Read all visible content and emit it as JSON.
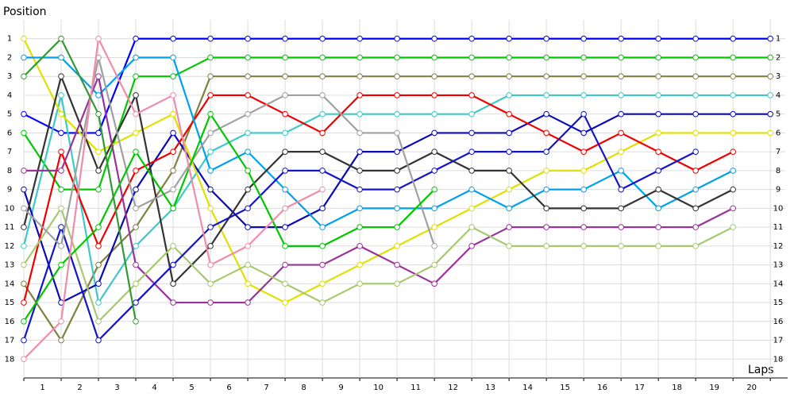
{
  "chart_data": {
    "type": "line",
    "y_label": "Position",
    "x_label": "Laps",
    "x": [
      0,
      1,
      2,
      3,
      4,
      5,
      6,
      7,
      8,
      9,
      10,
      11,
      12,
      13,
      14,
      15,
      16,
      17,
      18,
      19,
      20
    ],
    "xlim": [
      0,
      20.4
    ],
    "ylim": [
      0,
      19
    ],
    "y_inverted": true,
    "grid": true,
    "marker_fill": "#ffffff",
    "xticks": [
      {
        "value": 0.5,
        "label": "1"
      },
      {
        "value": 1.5,
        "label": "2"
      },
      {
        "value": 2.5,
        "label": "3"
      },
      {
        "value": 3.5,
        "label": "4"
      },
      {
        "value": 4.5,
        "label": "5"
      },
      {
        "value": 5.5,
        "label": "6"
      },
      {
        "value": 6.5,
        "label": "7"
      },
      {
        "value": 7.5,
        "label": "8"
      },
      {
        "value": 8.5,
        "label": "9"
      },
      {
        "value": 9.5,
        "label": "10"
      },
      {
        "value": 10.5,
        "label": "11"
      },
      {
        "value": 11.5,
        "label": "12"
      },
      {
        "value": 12.5,
        "label": "13"
      },
      {
        "value": 13.5,
        "label": "14"
      },
      {
        "value": 14.5,
        "label": "15"
      },
      {
        "value": 15.5,
        "label": "16"
      },
      {
        "value": 16.5,
        "label": "17"
      },
      {
        "value": 17.5,
        "label": "18"
      },
      {
        "value": 18.5,
        "label": "19"
      },
      {
        "value": 19.5,
        "label": "20"
      }
    ],
    "yticks": [
      1,
      2,
      3,
      4,
      5,
      6,
      7,
      8,
      9,
      10,
      11,
      12,
      13,
      14,
      15,
      16,
      17,
      18
    ],
    "series": [
      {
        "color": "#0000ff",
        "values": [
          5,
          6,
          6,
          1,
          1,
          1,
          1,
          1,
          1,
          1,
          1,
          1,
          1,
          1,
          1,
          1,
          1,
          1,
          1,
          1,
          1
        ]
      },
      {
        "color": "#00c800",
        "values": [
          6,
          9,
          9,
          3,
          3,
          2,
          2,
          2,
          2,
          2,
          2,
          2,
          2,
          2,
          2,
          2,
          2,
          2,
          2,
          2,
          2
        ]
      },
      {
        "color": "#808040",
        "values": [
          14,
          17,
          13,
          11,
          8,
          3,
          3,
          3,
          3,
          3,
          3,
          3,
          3,
          3,
          3,
          3,
          3,
          3,
          3,
          3,
          3
        ]
      },
      {
        "color": "#40c8c8",
        "values": [
          12,
          4,
          15,
          12,
          10,
          7,
          6,
          6,
          5,
          5,
          5,
          5,
          5,
          4,
          4,
          4,
          4,
          4,
          4,
          4,
          4
        ]
      },
      {
        "color": "#0a0ab4",
        "values": [
          9,
          15,
          14,
          9,
          6,
          9,
          11,
          11,
          10,
          7,
          7,
          6,
          6,
          6,
          5,
          6,
          5,
          5,
          5,
          5,
          5
        ]
      },
      {
        "color": "#e0e000",
        "values": [
          1,
          5,
          7,
          6,
          5,
          10,
          14,
          15,
          14,
          13,
          12,
          11,
          10,
          9,
          8,
          8,
          7,
          6,
          6,
          6,
          6
        ]
      },
      {
        "color": "#f00000",
        "values": [
          15,
          7,
          12,
          8,
          7,
          4,
          4,
          5,
          6,
          4,
          4,
          4,
          4,
          5,
          6,
          7,
          6,
          7,
          8,
          7,
          null
        ]
      },
      {
        "color": "#00a0f0",
        "values": [
          2,
          2,
          4,
          2,
          2,
          8,
          7,
          9,
          11,
          10,
          10,
          10,
          9,
          10,
          9,
          9,
          8,
          10,
          9,
          8,
          null
        ]
      },
      {
        "color": "#333333",
        "values": [
          11,
          3,
          8,
          4,
          14,
          12,
          9,
          7,
          7,
          8,
          8,
          7,
          8,
          8,
          10,
          10,
          10,
          9,
          10,
          9,
          null
        ]
      },
      {
        "color": "#993399",
        "values": [
          8,
          8,
          3,
          13,
          15,
          15,
          15,
          13,
          13,
          12,
          13,
          14,
          12,
          11,
          11,
          11,
          11,
          11,
          11,
          10,
          null
        ]
      },
      {
        "color": "#a8c870",
        "values": [
          13,
          10,
          16,
          14,
          12,
          14,
          13,
          14,
          15,
          14,
          14,
          13,
          11,
          12,
          12,
          12,
          12,
          12,
          12,
          11,
          null
        ]
      },
      {
        "color": "#1414c8",
        "values": [
          17,
          11,
          17,
          15,
          13,
          11,
          10,
          8,
          8,
          9,
          9,
          8,
          7,
          7,
          7,
          5,
          9,
          8,
          7,
          null,
          null
        ]
      },
      {
        "color": "#a0a0a0",
        "values": [
          10,
          12,
          2,
          10,
          9,
          6,
          5,
          4,
          4,
          6,
          6,
          12,
          null,
          null,
          null,
          null,
          null,
          null,
          null,
          null,
          null
        ]
      },
      {
        "color": "#00c800",
        "values": [
          16,
          13,
          11,
          7,
          10,
          5,
          8,
          12,
          12,
          11,
          11,
          9,
          null,
          null,
          null,
          null,
          null,
          null,
          null,
          null,
          null
        ]
      },
      {
        "color": "#f08caa",
        "values": [
          18,
          16,
          1,
          5,
          4,
          13,
          12,
          10,
          9,
          null,
          null,
          null,
          null,
          null,
          null,
          null,
          null,
          null,
          null,
          null,
          null
        ]
      },
      {
        "color": "#339933",
        "values": [
          3,
          1,
          5,
          16,
          null,
          null,
          null,
          null,
          null,
          null,
          null,
          null,
          null,
          null,
          null,
          null,
          null,
          null,
          null,
          null,
          null
        ]
      }
    ]
  }
}
